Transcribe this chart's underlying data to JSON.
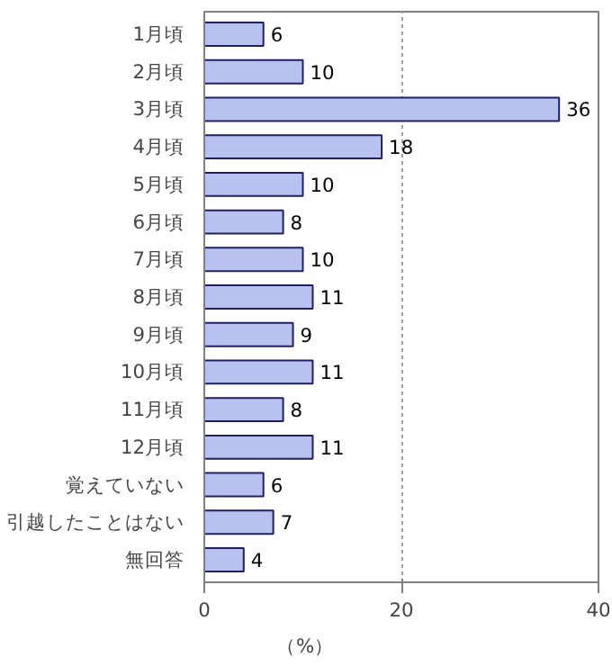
{
  "chart_data": {
    "type": "bar",
    "orientation": "horizontal",
    "categories": [
      "1月頃",
      "2月頃",
      "3月頃",
      "4月頃",
      "5月頃",
      "6月頃",
      "7月頃",
      "8月頃",
      "9月頃",
      "10月頃",
      "11月頃",
      "12月頃",
      "覚えていない",
      "引越したことはない",
      "無回答"
    ],
    "values": [
      6,
      10,
      36,
      18,
      10,
      8,
      10,
      11,
      9,
      11,
      8,
      11,
      6,
      7,
      4
    ],
    "color": "#b8c2f0",
    "xlim": [
      0,
      40
    ],
    "xticks": [
      0,
      20,
      40
    ],
    "grid": "x",
    "data_labels": true,
    "annotations": [
      "（%）"
    ]
  }
}
